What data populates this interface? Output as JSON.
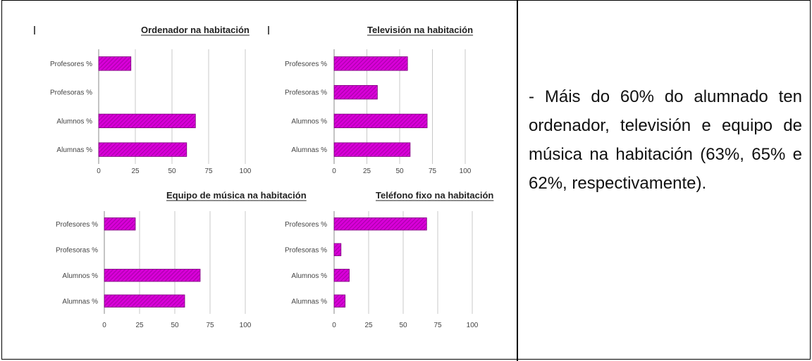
{
  "chart_data": [
    {
      "type": "bar",
      "title": "Ordenador na habitación",
      "categories": [
        "Profesores %",
        "Profesoras %",
        "Alumnos %",
        "Alumnas %"
      ],
      "values": [
        22,
        0,
        66,
        60
      ],
      "xticks": [
        "0",
        "25",
        "50",
        "75",
        "100"
      ],
      "xlim": [
        0,
        100
      ],
      "color": "#d800d8"
    },
    {
      "type": "bar",
      "title": "Televisión na habitación",
      "categories": [
        "Profesores %",
        "Profesoras %",
        "Alumnos %",
        "Alumnas %"
      ],
      "values": [
        56,
        33,
        71,
        58
      ],
      "xticks": [
        "0",
        "25",
        "50",
        "75",
        "100"
      ],
      "xlim": [
        0,
        100
      ],
      "color": "#d800d8"
    },
    {
      "type": "bar",
      "title": "Equipo de música na habitación",
      "categories": [
        "Profesores %",
        "Profesoras %",
        "Alumnos %",
        "Alumnas %"
      ],
      "values": [
        22,
        0,
        68,
        57
      ],
      "xticks": [
        "0",
        "25",
        "50",
        "75",
        "100"
      ],
      "xlim": [
        0,
        100
      ],
      "color": "#d800d8"
    },
    {
      "type": "bar",
      "title": "Teléfono fixo na habitación",
      "categories": [
        "Profesores %",
        "Profesoras %",
        "Alumnos %",
        "Alumnas %"
      ],
      "values": [
        67,
        5,
        11,
        8
      ],
      "xticks": [
        "0",
        "25",
        "50",
        "75",
        "100"
      ],
      "xlim": [
        0,
        100
      ],
      "color": "#d800d8"
    }
  ],
  "description": "- Máis do 60% do alumnado ten ordenador, televisión e equipo de música na habitación (63%, 65% e 62%, respectivamente)."
}
